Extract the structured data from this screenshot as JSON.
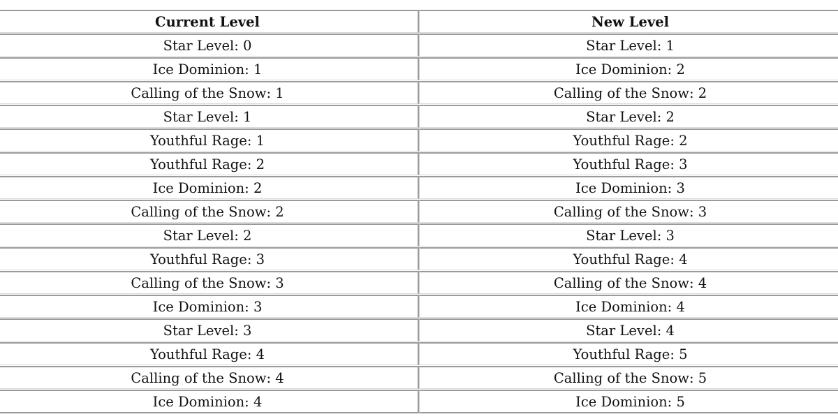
{
  "table": {
    "headers": [
      "Current Level",
      "New Level"
    ],
    "rows": [
      [
        "Star Level: 0",
        "Star Level: 1"
      ],
      [
        "Ice Dominion: 1",
        "Ice Dominion: 2"
      ],
      [
        "Calling of the Snow: 1",
        "Calling of the Snow: 2"
      ],
      [
        "Star Level: 1",
        "Star Level: 2"
      ],
      [
        "Youthful Rage: 1",
        "Youthful Rage: 2"
      ],
      [
        "Youthful Rage: 2",
        "Youthful Rage: 3"
      ],
      [
        "Ice Dominion: 2",
        "Ice Dominion: 3"
      ],
      [
        "Calling of the Snow: 2",
        "Calling of the Snow: 3"
      ],
      [
        "Star Level: 2",
        "Star Level: 3"
      ],
      [
        "Youthful Rage: 3",
        "Youthful Rage: 4"
      ],
      [
        "Calling of the Snow: 3",
        "Calling of the Snow: 4"
      ],
      [
        "Ice Dominion: 3",
        "Ice Dominion: 4"
      ],
      [
        "Star Level: 3",
        "Star Level: 4"
      ],
      [
        "Youthful Rage: 4",
        "Youthful Rage: 5"
      ],
      [
        "Calling of the Snow: 4",
        "Calling of the Snow: 5"
      ],
      [
        "Ice Dominion: 4",
        "Ice Dominion: 5"
      ]
    ]
  }
}
